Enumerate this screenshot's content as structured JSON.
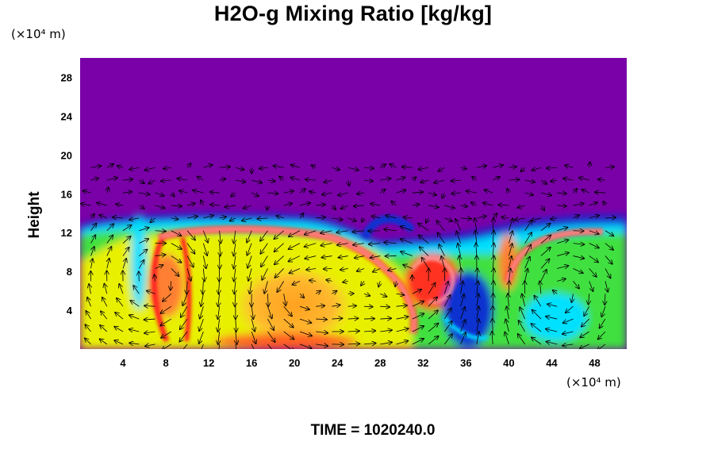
{
  "chart_data": {
    "type": "heatmap",
    "title": "H2O-g Mixing Ratio [kg/kg]",
    "ylabel": "Height",
    "xunit": "(×10⁴ m)",
    "yunit": "(×10⁴ m)",
    "x_ticks": [
      4,
      8,
      12,
      16,
      20,
      24,
      28,
      32,
      36,
      40,
      44,
      48
    ],
    "y_ticks": [
      4,
      8,
      12,
      16,
      20,
      24,
      28
    ],
    "xlim": [
      0,
      51
    ],
    "ylim": [
      0,
      30
    ],
    "overlay": "wind vectors",
    "colormap": [
      "#7a00a8",
      "#1030d0",
      "#00e0ff",
      "#40e040",
      "#e8f000",
      "#ffa020",
      "#ff2020",
      "#ffa0a0"
    ],
    "time_label": "TIME = 1020240.0"
  }
}
